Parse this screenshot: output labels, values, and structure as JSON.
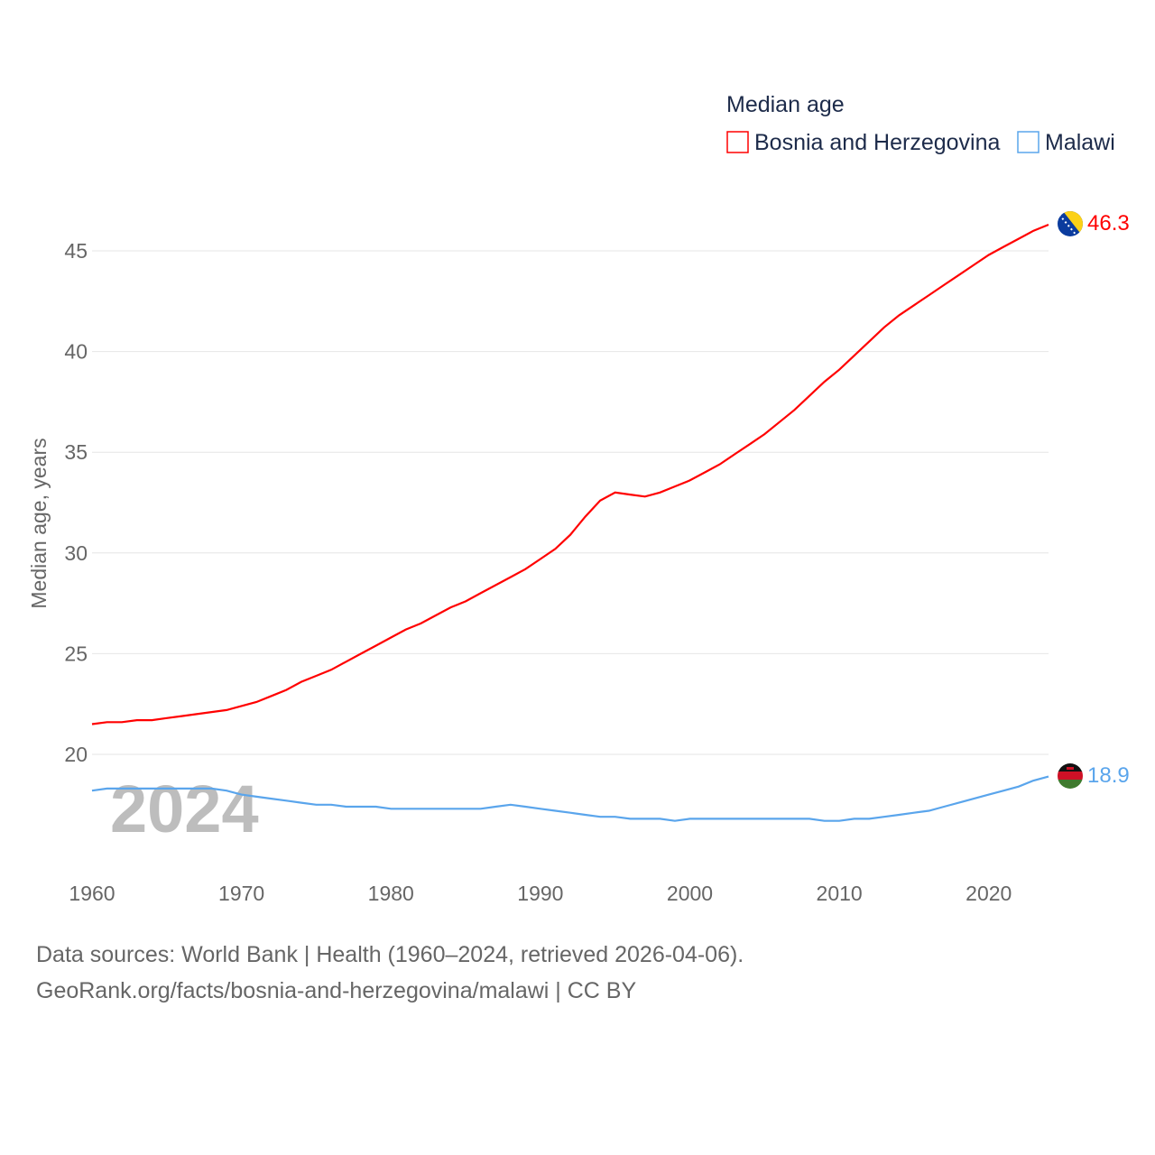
{
  "chart_data": {
    "type": "line",
    "legend_title": "Median age",
    "legend_position": "top-right",
    "ylabel": "Median age, years",
    "xlabel": "",
    "year_watermark": "2024",
    "ylim": [
      15.5,
      47.5
    ],
    "xlim": [
      1960,
      2024
    ],
    "y_ticks": [
      "20",
      "25",
      "30",
      "35",
      "40",
      "45"
    ],
    "x_ticks": [
      "1960",
      "1970",
      "1980",
      "1990",
      "2000",
      "2010",
      "2020"
    ],
    "grid": true,
    "x": [
      1960,
      1961,
      1962,
      1963,
      1964,
      1965,
      1966,
      1967,
      1968,
      1969,
      1970,
      1971,
      1972,
      1973,
      1974,
      1975,
      1976,
      1977,
      1978,
      1979,
      1980,
      1981,
      1982,
      1983,
      1984,
      1985,
      1986,
      1987,
      1988,
      1989,
      1990,
      1991,
      1992,
      1993,
      1994,
      1995,
      1996,
      1997,
      1998,
      1999,
      2000,
      2001,
      2002,
      2003,
      2004,
      2005,
      2006,
      2007,
      2008,
      2009,
      2010,
      2011,
      2012,
      2013,
      2014,
      2015,
      2016,
      2017,
      2018,
      2019,
      2020,
      2021,
      2022,
      2023,
      2024
    ],
    "series": [
      {
        "name": "Bosnia and Herzegovina",
        "color": "#ff0000",
        "end_label": "46.3",
        "values": [
          21.5,
          21.6,
          21.6,
          21.7,
          21.7,
          21.8,
          21.9,
          22.0,
          22.1,
          22.2,
          22.4,
          22.6,
          22.9,
          23.2,
          23.6,
          23.9,
          24.2,
          24.6,
          25.0,
          25.4,
          25.8,
          26.2,
          26.5,
          26.9,
          27.3,
          27.6,
          28.0,
          28.4,
          28.8,
          29.2,
          29.7,
          30.2,
          30.9,
          31.8,
          32.6,
          33.0,
          32.9,
          32.8,
          33.0,
          33.3,
          33.6,
          34.0,
          34.4,
          34.9,
          35.4,
          35.9,
          36.5,
          37.1,
          37.8,
          38.5,
          39.1,
          39.8,
          40.5,
          41.2,
          41.8,
          42.3,
          42.8,
          43.3,
          43.8,
          44.3,
          44.8,
          45.2,
          45.6,
          46.0,
          46.3
        ]
      },
      {
        "name": "Malawi",
        "color": "#5aa5ec",
        "end_label": "18.9",
        "values": [
          18.2,
          18.3,
          18.3,
          18.3,
          18.3,
          18.3,
          18.3,
          18.3,
          18.3,
          18.2,
          18.0,
          17.9,
          17.8,
          17.7,
          17.6,
          17.5,
          17.5,
          17.4,
          17.4,
          17.4,
          17.3,
          17.3,
          17.3,
          17.3,
          17.3,
          17.3,
          17.3,
          17.4,
          17.5,
          17.4,
          17.3,
          17.2,
          17.1,
          17.0,
          16.9,
          16.9,
          16.8,
          16.8,
          16.8,
          16.7,
          16.8,
          16.8,
          16.8,
          16.8,
          16.8,
          16.8,
          16.8,
          16.8,
          16.8,
          16.7,
          16.7,
          16.8,
          16.8,
          16.9,
          17.0,
          17.1,
          17.2,
          17.4,
          17.6,
          17.8,
          18.0,
          18.2,
          18.4,
          18.7,
          18.9
        ]
      }
    ]
  },
  "footer": {
    "line1": "Data sources: World Bank | Health (1960–2024, retrieved 2026-04-06).",
    "line2": "GeoRank.org/facts/bosnia-and-herzegovina/malawi | CC BY"
  }
}
